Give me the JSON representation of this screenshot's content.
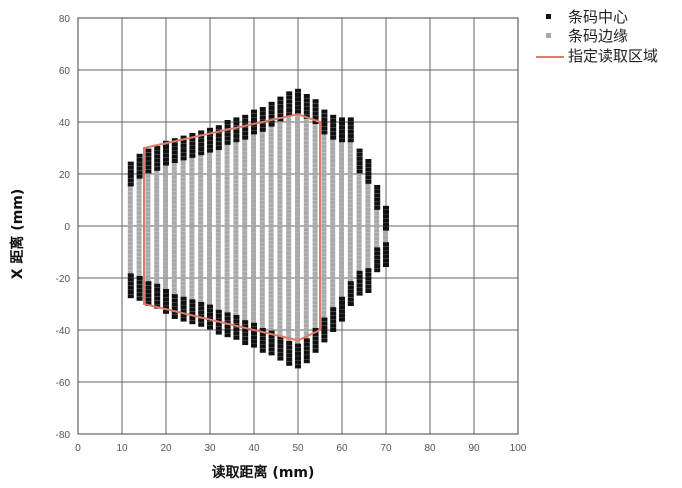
{
  "chart_data": {
    "type": "scatter",
    "xlabel": "读取距离 (mm)",
    "ylabel": "X 距离 (mm)",
    "xlim": [
      0,
      100
    ],
    "ylim": [
      -80,
      80
    ],
    "xticks": [
      0,
      10,
      20,
      30,
      40,
      50,
      60,
      70,
      80,
      90,
      100
    ],
    "yticks": [
      -80,
      -60,
      -40,
      -20,
      0,
      20,
      40,
      60,
      80
    ],
    "grid": true,
    "legend": {
      "position": "top-right",
      "entries": [
        {
          "label": "条码中心",
          "marker": "square",
          "color": "#111111"
        },
        {
          "label": "条码边缘",
          "marker": "square",
          "color": "#aaaaaa"
        },
        {
          "label": "指定读取区域",
          "marker": "line",
          "color": "#e07a6a"
        }
      ]
    },
    "colors": {
      "center": "#111111",
      "edge": "#aaaaaa",
      "region": "#e07a6a"
    },
    "series": [
      {
        "name": "条码中心",
        "columns": [
          {
            "x": 12,
            "top": 25,
            "bottom": -27
          },
          {
            "x": 14,
            "top": 28,
            "bottom": -28
          },
          {
            "x": 16,
            "top": 30,
            "bottom": -30
          },
          {
            "x": 18,
            "top": 31,
            "bottom": -31
          },
          {
            "x": 20,
            "top": 33,
            "bottom": -33
          },
          {
            "x": 22,
            "top": 34,
            "bottom": -35
          },
          {
            "x": 24,
            "top": 35,
            "bottom": -36
          },
          {
            "x": 26,
            "top": 36,
            "bottom": -37
          },
          {
            "x": 28,
            "top": 37,
            "bottom": -38
          },
          {
            "x": 30,
            "top": 38,
            "bottom": -39
          },
          {
            "x": 32,
            "top": 39,
            "bottom": -41
          },
          {
            "x": 34,
            "top": 41,
            "bottom": -42
          },
          {
            "x": 36,
            "top": 42,
            "bottom": -43
          },
          {
            "x": 38,
            "top": 43,
            "bottom": -45
          },
          {
            "x": 40,
            "top": 45,
            "bottom": -46
          },
          {
            "x": 42,
            "top": 46,
            "bottom": -48
          },
          {
            "x": 44,
            "top": 48,
            "bottom": -49
          },
          {
            "x": 46,
            "top": 50,
            "bottom": -51
          },
          {
            "x": 48,
            "top": 52,
            "bottom": -53
          },
          {
            "x": 50,
            "top": 53,
            "bottom": -54
          },
          {
            "x": 52,
            "top": 51,
            "bottom": -52
          },
          {
            "x": 54,
            "top": 49,
            "bottom": -48
          },
          {
            "x": 56,
            "top": 45,
            "bottom": -44
          },
          {
            "x": 58,
            "top": 43,
            "bottom": -40
          },
          {
            "x": 60,
            "top": 42,
            "bottom": -36
          },
          {
            "x": 62,
            "top": 42,
            "bottom": -30
          },
          {
            "x": 64,
            "top": 30,
            "bottom": -26
          },
          {
            "x": 66,
            "top": 26,
            "bottom": -25
          },
          {
            "x": 68,
            "top": 16,
            "bottom": -17
          },
          {
            "x": 70,
            "top": 8,
            "bottom": -15
          }
        ]
      },
      {
        "name": "条码边缘",
        "description_range": "inner light-grey points filling the columns between the black top and bottom clusters"
      },
      {
        "name": "指定读取区域",
        "outline": [
          [
            15,
            30
          ],
          [
            50,
            43
          ],
          [
            55,
            40
          ],
          [
            55,
            -40
          ],
          [
            50,
            -44
          ],
          [
            15,
            -30
          ]
        ]
      }
    ]
  }
}
